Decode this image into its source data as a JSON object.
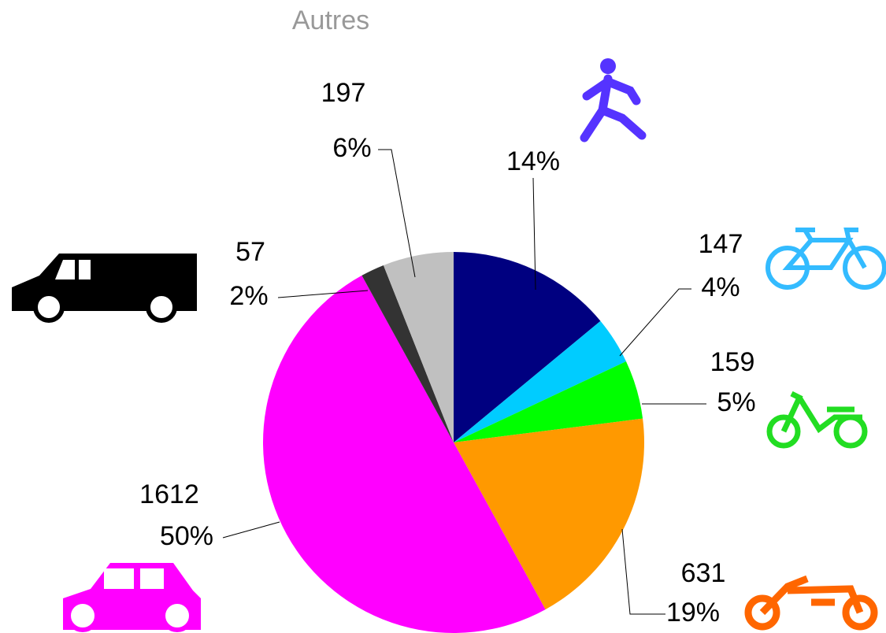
{
  "chart_data": {
    "type": "pie",
    "categories": [
      null,
      null,
      null,
      null,
      null,
      null,
      "Autres"
    ],
    "values": [
      14,
      4,
      5,
      19,
      50,
      2,
      6
    ],
    "value_labels": [
      "14%",
      "4%",
      "5%",
      "19%",
      "50%",
      "2%",
      "6%"
    ],
    "counts": [
      null,
      147,
      159,
      631,
      1612,
      57,
      197
    ],
    "colors": [
      "#000080",
      "#00ccff",
      "#00ff00",
      "#ff9900",
      "#ff00ff",
      "#333333",
      "#c0c0c0"
    ]
  }
}
